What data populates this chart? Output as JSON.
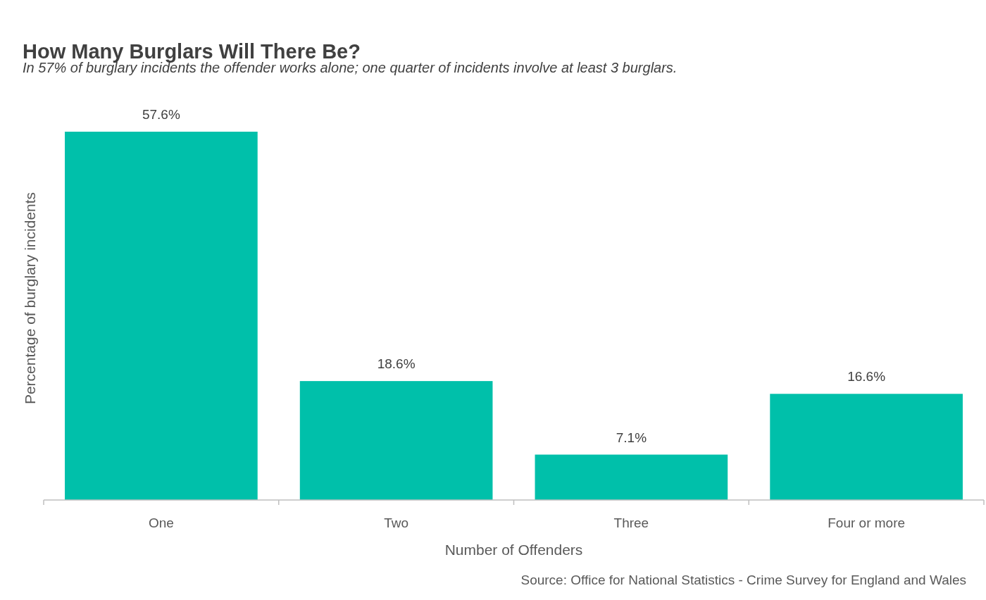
{
  "chart_data": {
    "type": "bar",
    "title": "How Many Burglars Will There Be?",
    "subtitle": "In 57% of burglary incidents the offender works alone; one quarter of incidents involve at least 3 burglars.",
    "xlabel": "Number of Offenders",
    "ylabel": "Percentage of burglary incidents",
    "categories": [
      "One",
      "Two",
      "Three",
      "Four or more"
    ],
    "values": [
      57.6,
      18.6,
      7.1,
      16.6
    ],
    "value_labels": [
      "57.6%",
      "18.6%",
      "7.1%",
      "16.6%"
    ],
    "color": "#00c0aa",
    "annotations": [
      "Source: Office for National Statistics - Crime Survey for England and Wales"
    ]
  }
}
